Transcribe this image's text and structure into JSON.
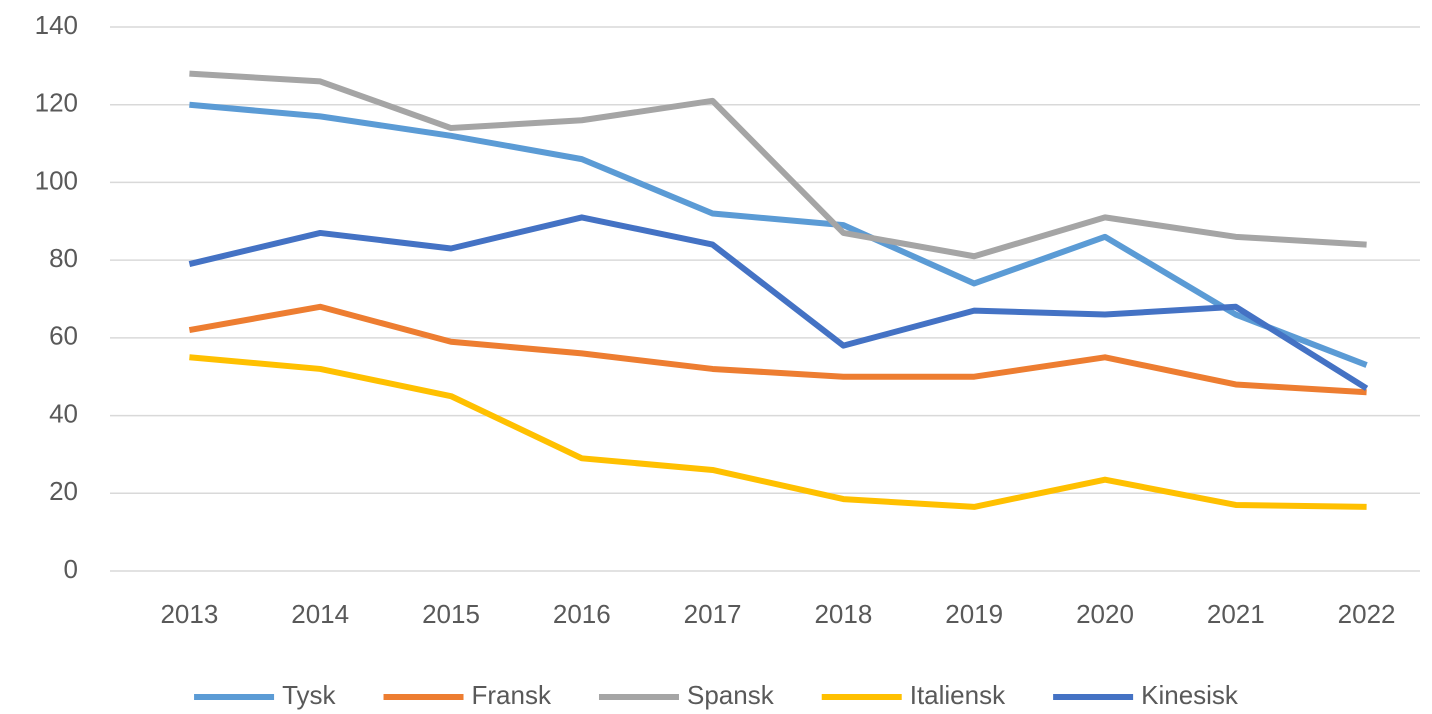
{
  "chart_data": {
    "type": "line",
    "categories": [
      "2013",
      "2014",
      "2015",
      "2016",
      "2017",
      "2018",
      "2019",
      "2020",
      "2021",
      "2022"
    ],
    "series": [
      {
        "name": "Tysk",
        "color": "#5b9bd5",
        "values": [
          120,
          117,
          112,
          106,
          92,
          89,
          74,
          86,
          66,
          53
        ]
      },
      {
        "name": "Fransk",
        "color": "#ed7d31",
        "values": [
          62,
          68,
          59,
          56,
          52,
          50,
          50,
          55,
          48,
          46
        ]
      },
      {
        "name": "Spansk",
        "color": "#a5a5a5",
        "values": [
          128,
          126,
          114,
          116,
          121,
          87,
          81,
          91,
          86,
          84
        ]
      },
      {
        "name": "Italiensk",
        "color": "#ffc000",
        "values": [
          55,
          52,
          45,
          29,
          26,
          18.5,
          16.5,
          23.5,
          17,
          16.5
        ]
      },
      {
        "name": "Kinesisk",
        "color": "#4472c4",
        "values": [
          79,
          87,
          83,
          91,
          84,
          58,
          67,
          66,
          68,
          47
        ]
      }
    ],
    "ylim": [
      0,
      140
    ],
    "yticks": [
      0,
      20,
      40,
      60,
      80,
      100,
      120,
      140
    ],
    "grid": true,
    "legend": "bottom"
  }
}
